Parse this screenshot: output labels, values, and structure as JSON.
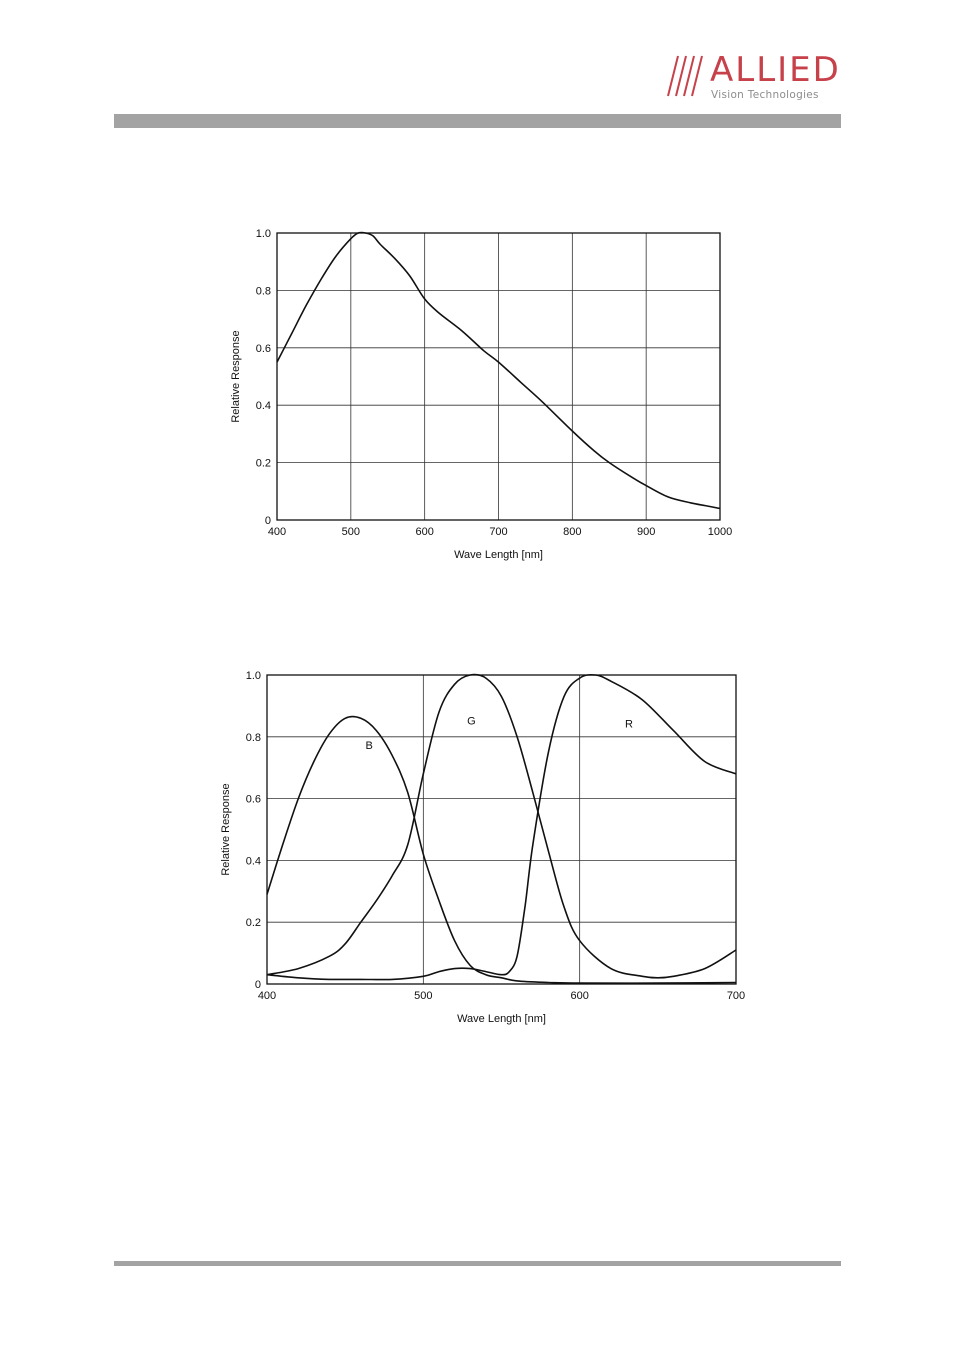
{
  "logo": {
    "word": "ALLIED",
    "tagline": "Vision Technologies",
    "accent_color": "#c7414a"
  },
  "chart_data": [
    {
      "type": "line",
      "xlabel": "Wave Length [nm]",
      "ylabel": "Relative Response",
      "xlim": [
        400,
        1000
      ],
      "ylim": [
        0,
        1.0
      ],
      "x_ticks": [
        400,
        500,
        600,
        700,
        800,
        900,
        1000
      ],
      "y_ticks": [
        0,
        0.2,
        0.4,
        0.6,
        0.8,
        1.0
      ],
      "y_tick_labels": [
        "0",
        "0.2",
        "0.4",
        "0.6",
        "0.8",
        "1.0"
      ],
      "grid": true,
      "series": [
        {
          "x": [
            400,
            420,
            440,
            460,
            480,
            500,
            510,
            520,
            530,
            540,
            560,
            580,
            600,
            620,
            650,
            680,
            700,
            730,
            760,
            800,
            830,
            850,
            880,
            900,
            930,
            960,
            980,
            1000
          ],
          "y": [
            0.55,
            0.65,
            0.75,
            0.84,
            0.92,
            0.98,
            1.0,
            1.0,
            0.99,
            0.96,
            0.91,
            0.85,
            0.77,
            0.72,
            0.66,
            0.59,
            0.55,
            0.48,
            0.41,
            0.31,
            0.24,
            0.2,
            0.15,
            0.12,
            0.08,
            0.06,
            0.05,
            0.04
          ]
        }
      ]
    },
    {
      "type": "line",
      "xlabel": "Wave Length [nm]",
      "ylabel": "Relative Response",
      "xlim": [
        400,
        700
      ],
      "ylim": [
        0,
        1.0
      ],
      "x_ticks": [
        400,
        500,
        600,
        700
      ],
      "y_ticks": [
        0,
        0.2,
        0.4,
        0.6,
        0.8,
        1.0
      ],
      "y_tick_labels": [
        "0",
        "0.2",
        "0.4",
        "0.6",
        "0.8",
        "1.0"
      ],
      "grid": true,
      "series": [
        {
          "name": "B",
          "x": [
            400,
            410,
            420,
            430,
            440,
            450,
            460,
            470,
            480,
            490,
            500,
            510,
            520,
            530,
            540,
            550,
            560,
            580,
            600,
            650,
            700
          ],
          "y": [
            0.29,
            0.45,
            0.6,
            0.72,
            0.81,
            0.86,
            0.86,
            0.82,
            0.74,
            0.62,
            0.42,
            0.27,
            0.14,
            0.06,
            0.03,
            0.02,
            0.01,
            0.005,
            0.003,
            0.003,
            0.005
          ]
        },
        {
          "name": "G",
          "x": [
            400,
            420,
            440,
            450,
            460,
            470,
            480,
            490,
            500,
            510,
            520,
            530,
            540,
            550,
            560,
            570,
            580,
            590,
            600,
            620,
            640,
            650,
            660,
            680,
            700
          ],
          "y": [
            0.03,
            0.05,
            0.09,
            0.13,
            0.2,
            0.27,
            0.35,
            0.45,
            0.68,
            0.88,
            0.97,
            1.0,
            0.99,
            0.93,
            0.8,
            0.62,
            0.43,
            0.25,
            0.14,
            0.05,
            0.025,
            0.02,
            0.025,
            0.05,
            0.11
          ]
        },
        {
          "name": "R",
          "x": [
            400,
            420,
            440,
            460,
            480,
            500,
            510,
            520,
            530,
            540,
            550,
            555,
            560,
            565,
            570,
            580,
            590,
            600,
            610,
            620,
            640,
            660,
            680,
            700
          ],
          "y": [
            0.03,
            0.02,
            0.015,
            0.015,
            0.015,
            0.025,
            0.04,
            0.05,
            0.05,
            0.04,
            0.03,
            0.04,
            0.09,
            0.25,
            0.45,
            0.75,
            0.93,
            0.99,
            1.0,
            0.98,
            0.92,
            0.82,
            0.72,
            0.68
          ]
        }
      ]
    }
  ]
}
